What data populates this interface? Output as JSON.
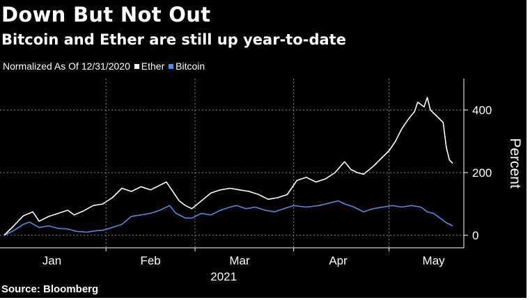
{
  "title": "Down But Not Out",
  "subtitle": "Bitcoin and Ether are still up year-to-date",
  "legend": {
    "prefix": "Normalized As Of 12/31/2020",
    "items": [
      {
        "label": "Ether",
        "color": "#ffffff"
      },
      {
        "label": "Bitcoin",
        "color": "#4a8fe7"
      }
    ]
  },
  "source": "Source: Bloomberg",
  "chart_data": {
    "type": "line",
    "title": "Down But Not Out",
    "subtitle": "Bitcoin and Ether are still up year-to-date",
    "xlabel": "2021",
    "ylabel": "Percent",
    "ylim": [
      -40,
      500
    ],
    "yticks": [
      0,
      200,
      400
    ],
    "xrange": [
      "2020-12-31",
      "2021-05-21"
    ],
    "xticks": [
      {
        "label": "Jan",
        "date": "2021-01-15"
      },
      {
        "label": "Feb",
        "date": "2021-02-15"
      },
      {
        "label": "Mar",
        "date": "2021-03-15"
      },
      {
        "label": "Apr",
        "date": "2021-04-15"
      },
      {
        "label": "May",
        "date": "2021-05-15"
      }
    ],
    "year_label": "2021",
    "vgrid_dates": [
      "2021-02-01",
      "2021-03-01",
      "2021-04-01",
      "2021-05-01"
    ],
    "grid": true,
    "legend_position": "top-left",
    "series": [
      {
        "name": "Ether",
        "color": "#ffffff",
        "points": [
          [
            "2020-12-31",
            0
          ],
          [
            "2021-01-03",
            30
          ],
          [
            "2021-01-06",
            62
          ],
          [
            "2021-01-09",
            75
          ],
          [
            "2021-01-11",
            45
          ],
          [
            "2021-01-14",
            60
          ],
          [
            "2021-01-17",
            70
          ],
          [
            "2021-01-20",
            80
          ],
          [
            "2021-01-22",
            65
          ],
          [
            "2021-01-25",
            78
          ],
          [
            "2021-01-28",
            95
          ],
          [
            "2021-01-31",
            100
          ],
          [
            "2021-02-03",
            120
          ],
          [
            "2021-02-06",
            150
          ],
          [
            "2021-02-09",
            140
          ],
          [
            "2021-02-12",
            155
          ],
          [
            "2021-02-15",
            145
          ],
          [
            "2021-02-18",
            160
          ],
          [
            "2021-02-20",
            170
          ],
          [
            "2021-02-22",
            140
          ],
          [
            "2021-02-24",
            110
          ],
          [
            "2021-02-26",
            95
          ],
          [
            "2021-02-28",
            85
          ],
          [
            "2021-03-03",
            110
          ],
          [
            "2021-03-06",
            135
          ],
          [
            "2021-03-09",
            145
          ],
          [
            "2021-03-12",
            150
          ],
          [
            "2021-03-15",
            145
          ],
          [
            "2021-03-18",
            140
          ],
          [
            "2021-03-21",
            130
          ],
          [
            "2021-03-24",
            115
          ],
          [
            "2021-03-27",
            120
          ],
          [
            "2021-03-30",
            130
          ],
          [
            "2021-04-02",
            175
          ],
          [
            "2021-04-05",
            185
          ],
          [
            "2021-04-08",
            170
          ],
          [
            "2021-04-11",
            180
          ],
          [
            "2021-04-14",
            200
          ],
          [
            "2021-04-17",
            235
          ],
          [
            "2021-04-19",
            210
          ],
          [
            "2021-04-21",
            200
          ],
          [
            "2021-04-23",
            195
          ],
          [
            "2021-04-26",
            220
          ],
          [
            "2021-04-29",
            250
          ],
          [
            "2021-05-01",
            270
          ],
          [
            "2021-05-03",
            300
          ],
          [
            "2021-05-05",
            340
          ],
          [
            "2021-05-07",
            370
          ],
          [
            "2021-05-09",
            395
          ],
          [
            "2021-05-10",
            425
          ],
          [
            "2021-05-12",
            410
          ],
          [
            "2021-05-13",
            440
          ],
          [
            "2021-05-14",
            400
          ],
          [
            "2021-05-16",
            380
          ],
          [
            "2021-05-18",
            360
          ],
          [
            "2021-05-19",
            280
          ],
          [
            "2021-05-20",
            240
          ],
          [
            "2021-05-21",
            230
          ]
        ]
      },
      {
        "name": "Bitcoin",
        "color": "#4a8fe7",
        "points": [
          [
            "2020-12-31",
            0
          ],
          [
            "2021-01-03",
            15
          ],
          [
            "2021-01-06",
            35
          ],
          [
            "2021-01-08",
            42
          ],
          [
            "2021-01-11",
            25
          ],
          [
            "2021-01-14",
            30
          ],
          [
            "2021-01-17",
            22
          ],
          [
            "2021-01-20",
            20
          ],
          [
            "2021-01-23",
            12
          ],
          [
            "2021-01-26",
            10
          ],
          [
            "2021-01-29",
            15
          ],
          [
            "2021-01-31",
            16
          ],
          [
            "2021-02-03",
            25
          ],
          [
            "2021-02-06",
            35
          ],
          [
            "2021-02-09",
            60
          ],
          [
            "2021-02-12",
            65
          ],
          [
            "2021-02-15",
            70
          ],
          [
            "2021-02-18",
            80
          ],
          [
            "2021-02-21",
            95
          ],
          [
            "2021-02-23",
            70
          ],
          [
            "2021-02-26",
            55
          ],
          [
            "2021-02-28",
            55
          ],
          [
            "2021-03-03",
            70
          ],
          [
            "2021-03-06",
            65
          ],
          [
            "2021-03-09",
            80
          ],
          [
            "2021-03-12",
            90
          ],
          [
            "2021-03-14",
            95
          ],
          [
            "2021-03-17",
            85
          ],
          [
            "2021-03-20",
            90
          ],
          [
            "2021-03-23",
            80
          ],
          [
            "2021-03-26",
            75
          ],
          [
            "2021-03-29",
            85
          ],
          [
            "2021-04-01",
            95
          ],
          [
            "2021-04-05",
            90
          ],
          [
            "2021-04-09",
            95
          ],
          [
            "2021-04-13",
            105
          ],
          [
            "2021-04-15",
            110
          ],
          [
            "2021-04-17",
            100
          ],
          [
            "2021-04-20",
            90
          ],
          [
            "2021-04-23",
            75
          ],
          [
            "2021-04-26",
            85
          ],
          [
            "2021-04-29",
            90
          ],
          [
            "2021-05-02",
            95
          ],
          [
            "2021-05-05",
            90
          ],
          [
            "2021-05-08",
            95
          ],
          [
            "2021-05-11",
            90
          ],
          [
            "2021-05-13",
            75
          ],
          [
            "2021-05-15",
            70
          ],
          [
            "2021-05-17",
            55
          ],
          [
            "2021-05-19",
            40
          ],
          [
            "2021-05-21",
            30
          ]
        ]
      }
    ]
  }
}
